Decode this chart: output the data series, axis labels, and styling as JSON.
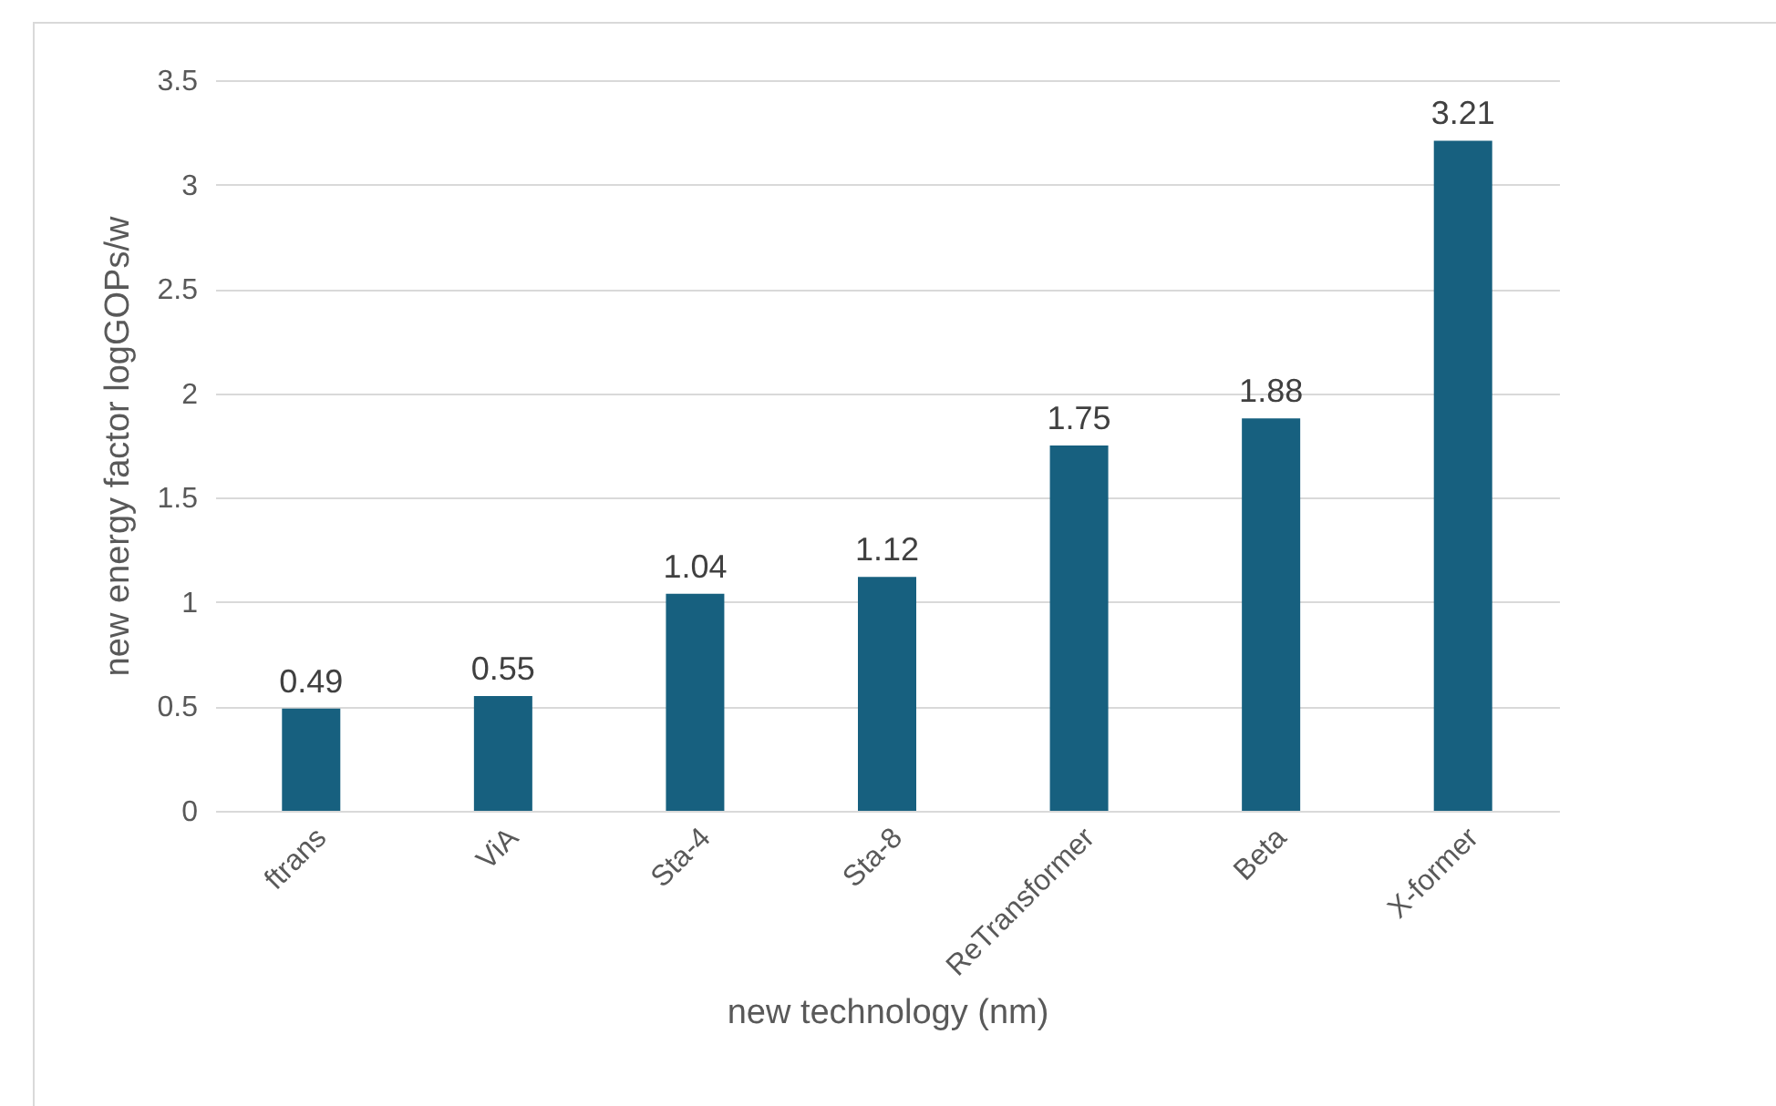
{
  "chart_data": {
    "type": "bar",
    "xlabel": "new technology (nm)",
    "ylabel": "new energy factor logGOPs/w",
    "categories": [
      "ftrans",
      "ViA",
      "Sta-4",
      "Sta-8",
      "ReTransformer",
      "Beta",
      "X-former"
    ],
    "values": [
      0.49,
      0.55,
      1.04,
      1.12,
      1.75,
      1.88,
      3.21
    ],
    "color": "#17607f",
    "ylim": [
      0,
      3.5
    ],
    "yticks": [
      0,
      0.5,
      1,
      1.5,
      2,
      2.5,
      3,
      3.5
    ],
    "grid": "y",
    "data_labels": true
  }
}
